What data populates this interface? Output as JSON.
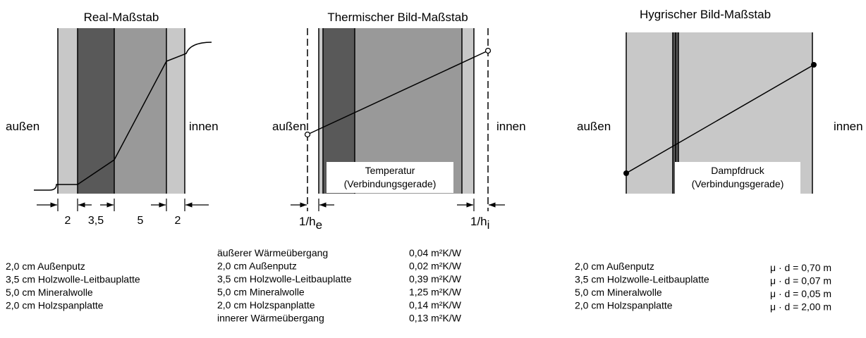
{
  "real": {
    "title": "Real-Maßstab",
    "outside": "außen",
    "inside": "innen",
    "dims": [
      "2",
      "3,5",
      "5",
      "2"
    ]
  },
  "thermal": {
    "title": "Thermischer Bild-Maßstab",
    "outside": "außen",
    "inside": "innen",
    "box": [
      "Temperatur",
      "(Verbindungsgerade)"
    ],
    "dims": [
      {
        "main": "1/h",
        "sub": "e"
      },
      {
        "main": "1/h",
        "sub": "i"
      }
    ]
  },
  "hygric": {
    "title": "Hygrischer Bild-Maßstab",
    "outside": "außen",
    "inside": "innen",
    "box": [
      "Dampfdruck",
      "(Verbindungsgerade)"
    ]
  },
  "list_real": [
    "2,0 cm Außenputz",
    "3,5 cm Holzwolle-Leitbauplatte",
    "5,0 cm Mineralwolle",
    "2,0 cm Holzspanplatte"
  ],
  "list_thermal": [
    {
      "label": "äußerer Wärmeübergang",
      "value": "0,04 m²K/W"
    },
    {
      "label": "2,0 cm Außenputz",
      "value": "0,02 m²K/W"
    },
    {
      "label": "3,5 cm Holzwolle-Leitbauplatte",
      "value": "0,39 m²K/W"
    },
    {
      "label": "5,0 cm Mineralwolle",
      "value": "1,25 m²K/W"
    },
    {
      "label": "2,0 cm Holzspanplatte",
      "value": "0,14 m²K/W"
    },
    {
      "label": "innerer Wärmeübergang",
      "value": "0,13 m²K/W"
    }
  ],
  "list_hygric": [
    {
      "label": "2,0 cm Außenputz",
      "value": "μ · d = 0,70 m"
    },
    {
      "label": "3,5 cm Holzwolle-Leitbauplatte",
      "value": "μ · d = 0,07 m"
    },
    {
      "label": "5,0 cm Mineralwolle",
      "value": "μ · d = 0,05 m"
    },
    {
      "label": "2,0 cm Holzspanplatte",
      "value": "μ · d = 2,00 m"
    }
  ]
}
